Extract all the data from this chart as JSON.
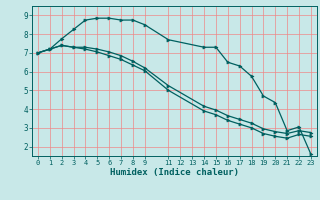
{
  "title": "",
  "xlabel": "Humidex (Indice chaleur)",
  "bg_color": "#c8e8e8",
  "line_color": "#006060",
  "grid_color": "#ee8888",
  "ylim": [
    1.5,
    9.5
  ],
  "xlim": [
    -0.5,
    23.5
  ],
  "yticks": [
    2,
    3,
    4,
    5,
    6,
    7,
    8,
    9
  ],
  "xtick_pos": [
    0,
    1,
    2,
    3,
    4,
    5,
    6,
    7,
    8,
    9,
    11,
    12,
    13,
    14,
    15,
    16,
    17,
    18,
    19,
    20,
    21,
    22,
    23
  ],
  "xtick_labels": [
    "0",
    "1",
    "2",
    "3",
    "4",
    "5",
    "6",
    "7",
    "8",
    "9",
    "11",
    "12",
    "13",
    "14",
    "15",
    "16",
    "17",
    "18",
    "19",
    "20",
    "21",
    "22",
    "23"
  ],
  "line1_x": [
    0,
    1,
    2,
    3,
    4,
    5,
    6,
    7,
    8,
    9,
    11,
    14,
    15,
    16,
    17,
    18,
    19,
    20,
    21,
    22,
    23
  ],
  "line1_y": [
    7.0,
    7.2,
    7.75,
    8.25,
    8.75,
    8.85,
    8.85,
    8.75,
    8.75,
    8.5,
    7.7,
    7.3,
    7.3,
    6.5,
    6.3,
    5.75,
    4.7,
    4.35,
    2.85,
    3.05,
    1.6
  ],
  "line2_x": [
    0,
    1,
    2,
    3,
    4,
    5,
    6,
    7,
    8,
    9,
    11,
    14,
    15,
    16,
    17,
    18,
    19,
    20,
    21,
    22,
    23
  ],
  "line2_y": [
    7.0,
    7.2,
    7.4,
    7.3,
    7.3,
    7.2,
    7.05,
    6.85,
    6.55,
    6.2,
    5.25,
    4.15,
    3.95,
    3.65,
    3.45,
    3.25,
    2.95,
    2.8,
    2.7,
    2.85,
    2.75
  ],
  "line3_x": [
    0,
    1,
    2,
    3,
    4,
    5,
    6,
    7,
    8,
    9,
    11,
    14,
    15,
    16,
    17,
    18,
    19,
    20,
    21,
    22,
    23
  ],
  "line3_y": [
    7.0,
    7.2,
    7.4,
    7.3,
    7.2,
    7.05,
    6.85,
    6.65,
    6.35,
    6.05,
    5.0,
    3.9,
    3.7,
    3.4,
    3.2,
    3.0,
    2.7,
    2.55,
    2.45,
    2.65,
    2.55
  ],
  "figsize": [
    3.2,
    2.0
  ],
  "dpi": 100
}
